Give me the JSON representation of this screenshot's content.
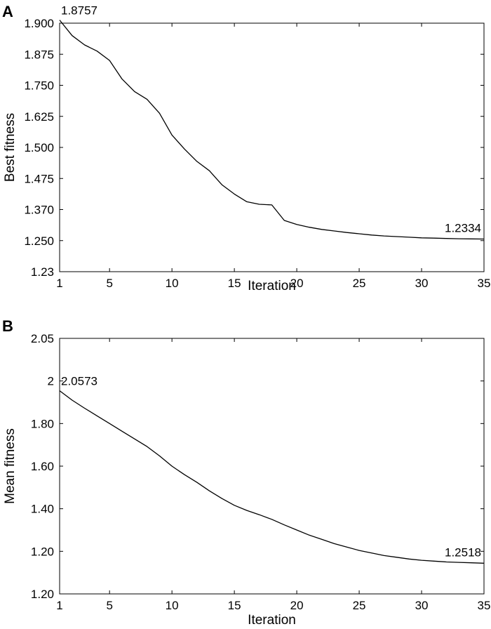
{
  "chart_data": [
    {
      "type": "line",
      "panel_label": "A",
      "xlabel": "Iteration",
      "ylabel": "Best fitness",
      "x_ticks": [
        1,
        5,
        10,
        15,
        20,
        25,
        30,
        35
      ],
      "y_ticks": [
        "1.23",
        "1.250",
        "1.370",
        "1.475",
        "1.500",
        "1.625",
        "1.750",
        "1.875",
        "1.900"
      ],
      "xlim": [
        1,
        35
      ],
      "grid": false,
      "series": [
        {
          "x": [
            1,
            2,
            3,
            4,
            5,
            6,
            7,
            8,
            9,
            10,
            11,
            12,
            13,
            14,
            15,
            16,
            17,
            18,
            19,
            20,
            21,
            22,
            23,
            24,
            25,
            26,
            27,
            28,
            29,
            30,
            31,
            32,
            33,
            34,
            35
          ],
          "values_tick_index": [
            8.1,
            7.6,
            7.3,
            7.1,
            6.8,
            6.2,
            5.8,
            5.55,
            5.1,
            4.4,
            3.95,
            3.55,
            3.25,
            2.8,
            2.5,
            2.25,
            2.17,
            2.15,
            1.65,
            1.52,
            1.43,
            1.36,
            1.31,
            1.26,
            1.22,
            1.18,
            1.15,
            1.13,
            1.11,
            1.09,
            1.08,
            1.07,
            1.06,
            1.055,
            1.05
          ]
        }
      ],
      "annotations": [
        {
          "x": 1,
          "tick_index": 8.1,
          "text": "1.8757"
        },
        {
          "x": 35,
          "tick_index": 1.05,
          "text": "1.2334"
        }
      ]
    },
    {
      "type": "line",
      "panel_label": "B",
      "xlabel": "Iteration",
      "ylabel": "Mean fitness",
      "x_ticks": [
        1,
        5,
        10,
        15,
        20,
        25,
        30,
        35
      ],
      "y_ticks": [
        "1.20",
        "1.20",
        "1.40",
        "1.60",
        "1.80",
        "2",
        "2.05"
      ],
      "xlim": [
        1,
        35
      ],
      "grid": false,
      "series": [
        {
          "x": [
            1,
            2,
            3,
            4,
            5,
            6,
            7,
            8,
            9,
            10,
            11,
            12,
            13,
            14,
            15,
            16,
            17,
            18,
            19,
            20,
            21,
            22,
            23,
            24,
            25,
            26,
            27,
            28,
            29,
            30,
            31,
            32,
            33,
            34,
            35
          ],
          "values_tick_index": [
            4.77,
            4.55,
            4.36,
            4.18,
            4.0,
            3.82,
            3.64,
            3.46,
            3.24,
            3.0,
            2.8,
            2.62,
            2.42,
            2.24,
            2.08,
            1.96,
            1.86,
            1.75,
            1.62,
            1.5,
            1.38,
            1.28,
            1.18,
            1.1,
            1.02,
            0.96,
            0.9,
            0.86,
            0.82,
            0.79,
            0.77,
            0.75,
            0.74,
            0.73,
            0.72
          ]
        }
      ],
      "annotations": [
        {
          "x": 1,
          "tick_index": 4.77,
          "text": "2.0573"
        },
        {
          "x": 35,
          "tick_index": 0.72,
          "text": "1.2518"
        }
      ]
    }
  ]
}
